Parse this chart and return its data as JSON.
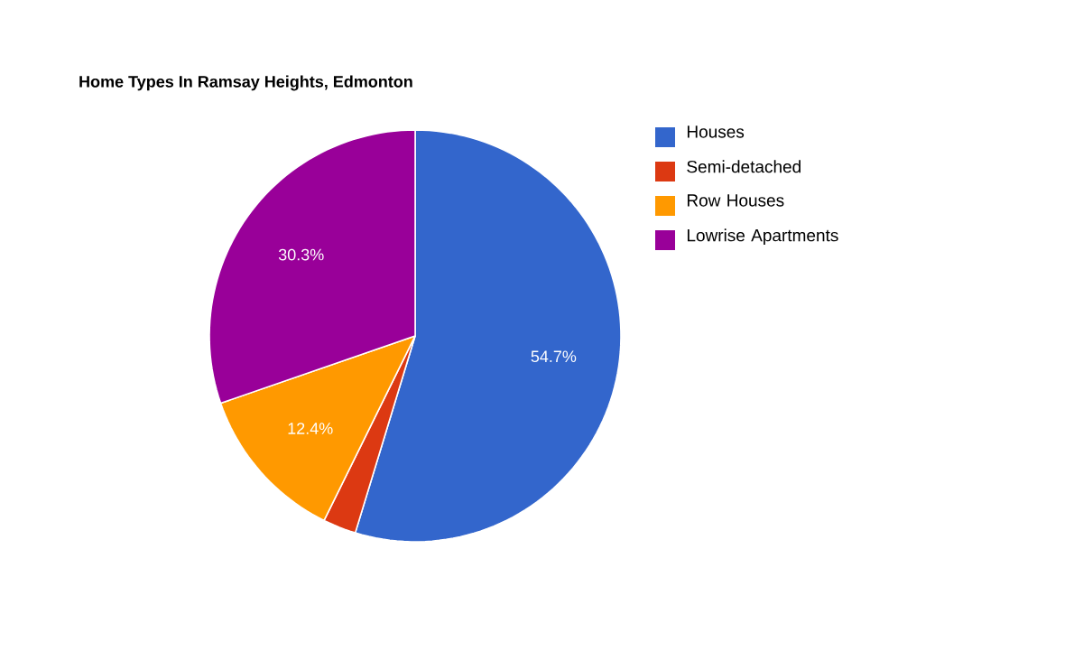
{
  "chart_data": {
    "type": "pie",
    "title": "Home Types In Ramsay Heights, Edmonton",
    "categories": [
      "Houses",
      "Semi-detached",
      "Row Houses",
      "Lowrise Apartments"
    ],
    "values": [
      54.7,
      2.6,
      12.4,
      30.3
    ],
    "colors": [
      "#3366cc",
      "#dc3912",
      "#ff9900",
      "#990099"
    ],
    "value_labels": [
      "54.7%",
      null,
      "12.4%",
      "30.3%"
    ],
    "legend": "right"
  }
}
